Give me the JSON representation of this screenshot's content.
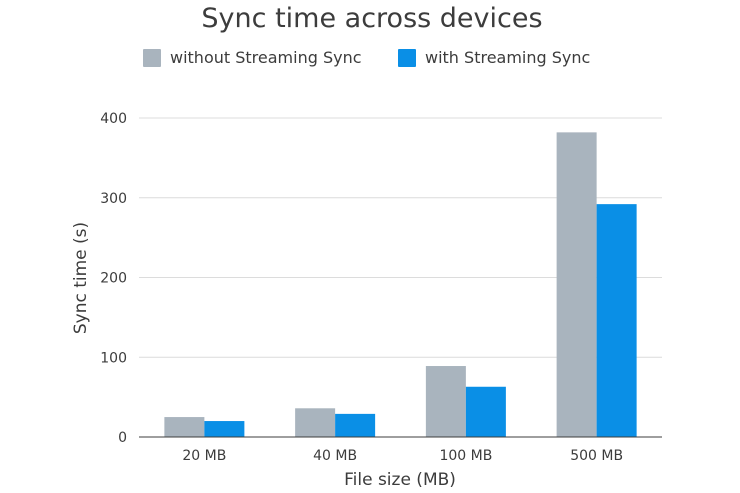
{
  "chart_data": {
    "type": "bar",
    "title": "Sync time across devices",
    "xlabel": "File size (MB)",
    "ylabel": "Sync time (s)",
    "categories": [
      "20 MB",
      "40 MB",
      "100 MB",
      "500 MB"
    ],
    "series": [
      {
        "name": "without Streaming Sync",
        "color": "#a9b4be",
        "values": [
          25,
          36,
          89,
          382
        ]
      },
      {
        "name": "with Streaming Sync",
        "color": "#0a8fe6",
        "values": [
          20,
          29,
          63,
          292
        ]
      }
    ],
    "ylim": [
      0,
      400
    ],
    "yticks": [
      0,
      100,
      200,
      300,
      400
    ],
    "grid": true,
    "legend_position": "top-center"
  }
}
